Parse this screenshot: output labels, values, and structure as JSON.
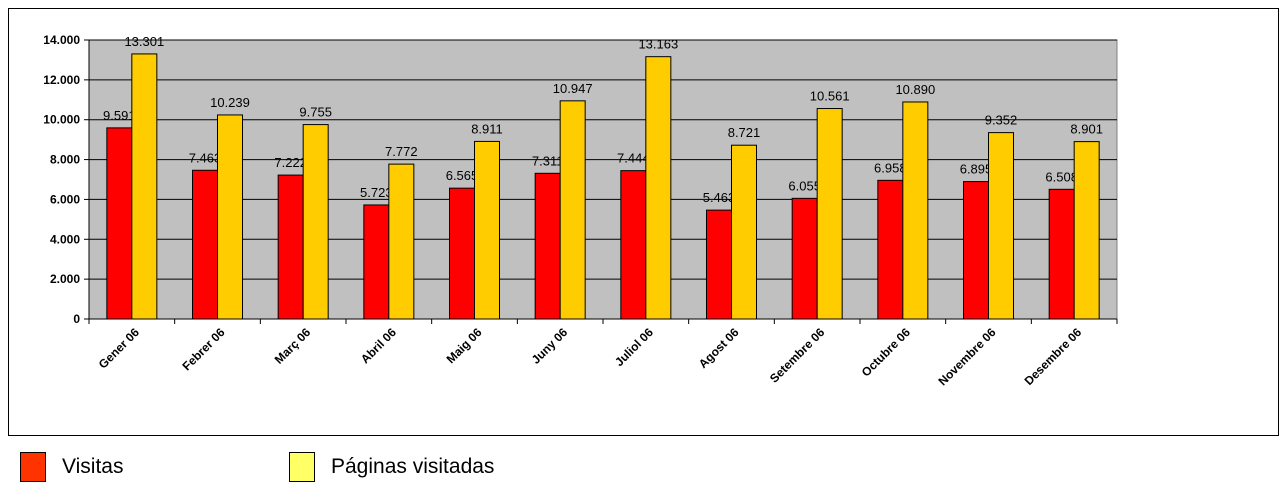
{
  "chart_data": {
    "type": "bar",
    "title": "",
    "xlabel": "",
    "ylabel": "",
    "categories": [
      "Gener 06",
      "Febrer 06",
      "Març 06",
      "Abril 06",
      "Maig 06",
      "Juny 06",
      "Juliol 06",
      "Agost 06",
      "Setembre 06",
      "Octubre 06",
      "Novembre 06",
      "Desembre 06"
    ],
    "series": [
      {
        "name": "Visitas",
        "color": "#ff0000",
        "values": [
          9591,
          7463,
          7222,
          5723,
          6565,
          7311,
          7444,
          5463,
          6055,
          6958,
          6895,
          6508
        ],
        "labels": [
          "9.591",
          "7.463",
          "7.222",
          "5.723",
          "6.565",
          "7.311",
          "7.444",
          "5.463",
          "6.055",
          "6.958",
          "6.895",
          "6.508"
        ]
      },
      {
        "name": "Páginas visitadas",
        "color": "#ffcc00",
        "values": [
          13301,
          10239,
          9755,
          7772,
          8911,
          10947,
          13163,
          8721,
          10561,
          10890,
          9352,
          8901
        ],
        "labels": [
          "13.301",
          "10.239",
          "9.755",
          "7.772",
          "8.911",
          "10.947",
          "13.163",
          "8.721",
          "10.561",
          "10.890",
          "9.352",
          "8.901"
        ]
      }
    ],
    "ylim": [
      0,
      14000
    ],
    "yticks": [
      0,
      2000,
      4000,
      6000,
      8000,
      10000,
      12000,
      14000
    ],
    "ytick_labels": [
      "0",
      "2.000",
      "4.000",
      "6.000",
      "8.000",
      "10.000",
      "12.000",
      "14.000"
    ],
    "grid": true,
    "plot_background": "#c0c0c0",
    "legend_position": "bottom-left"
  },
  "legend": {
    "items": [
      {
        "label": "Visitas",
        "color": "#ff3300"
      },
      {
        "label": "Páginas visitadas",
        "color": "#ffff66"
      }
    ]
  }
}
